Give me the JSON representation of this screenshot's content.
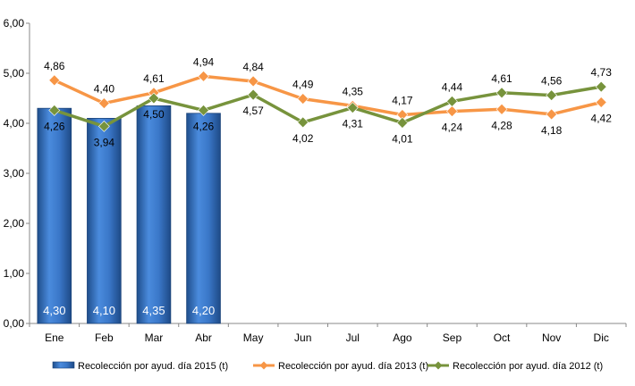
{
  "chart_data": {
    "type": "bar",
    "title": "",
    "xlabel": "",
    "ylabel": "",
    "ylim": [
      0,
      6
    ],
    "y_ticks": [
      "0,00",
      "1,00",
      "2,00",
      "3,00",
      "4,00",
      "5,00",
      "6,00"
    ],
    "grid": false,
    "legend_position": "bottom",
    "categories": [
      "Ene",
      "Feb",
      "Mar",
      "Abr",
      "May",
      "Jun",
      "Jul",
      "Ago",
      "Sep",
      "Oct",
      "Nov",
      "Dic"
    ],
    "series": [
      {
        "name": "Recolección por ayud. día 2015 (t)",
        "type": "bar",
        "color": "#3A77C8",
        "values": [
          4.3,
          4.1,
          4.35,
          4.2,
          null,
          null,
          null,
          null,
          null,
          null,
          null,
          null
        ],
        "labels": [
          "4,30",
          "4,10",
          "4,35",
          "4,20",
          "",
          "",
          "",
          "",
          "",
          "",
          "",
          ""
        ]
      },
      {
        "name": "Recolección por ayud. día 2013 (t)",
        "type": "line",
        "marker": "diamond",
        "color": "#F79646",
        "values": [
          4.86,
          4.4,
          4.61,
          4.94,
          4.84,
          4.49,
          4.35,
          4.17,
          4.24,
          4.28,
          4.18,
          4.42
        ],
        "labels": [
          "4,86",
          "4,40",
          "4,61",
          "4,94",
          "4,84",
          "4,49",
          "4,35",
          "4,17",
          "4,24",
          "4,28",
          "4,18",
          "4,42"
        ]
      },
      {
        "name": "Recolección por ayud. día 2012 (t)",
        "type": "line",
        "marker": "diamond",
        "color": "#77933C",
        "values": [
          4.26,
          3.94,
          4.5,
          4.26,
          4.57,
          4.02,
          4.31,
          4.01,
          4.44,
          4.61,
          4.56,
          4.73
        ],
        "labels": [
          "4,26",
          "3,94",
          "4,50",
          "4,26",
          "4,57",
          "4,02",
          "4,31",
          "4,01",
          "4,44",
          "4,61",
          "4,56",
          "4,73"
        ]
      }
    ]
  }
}
